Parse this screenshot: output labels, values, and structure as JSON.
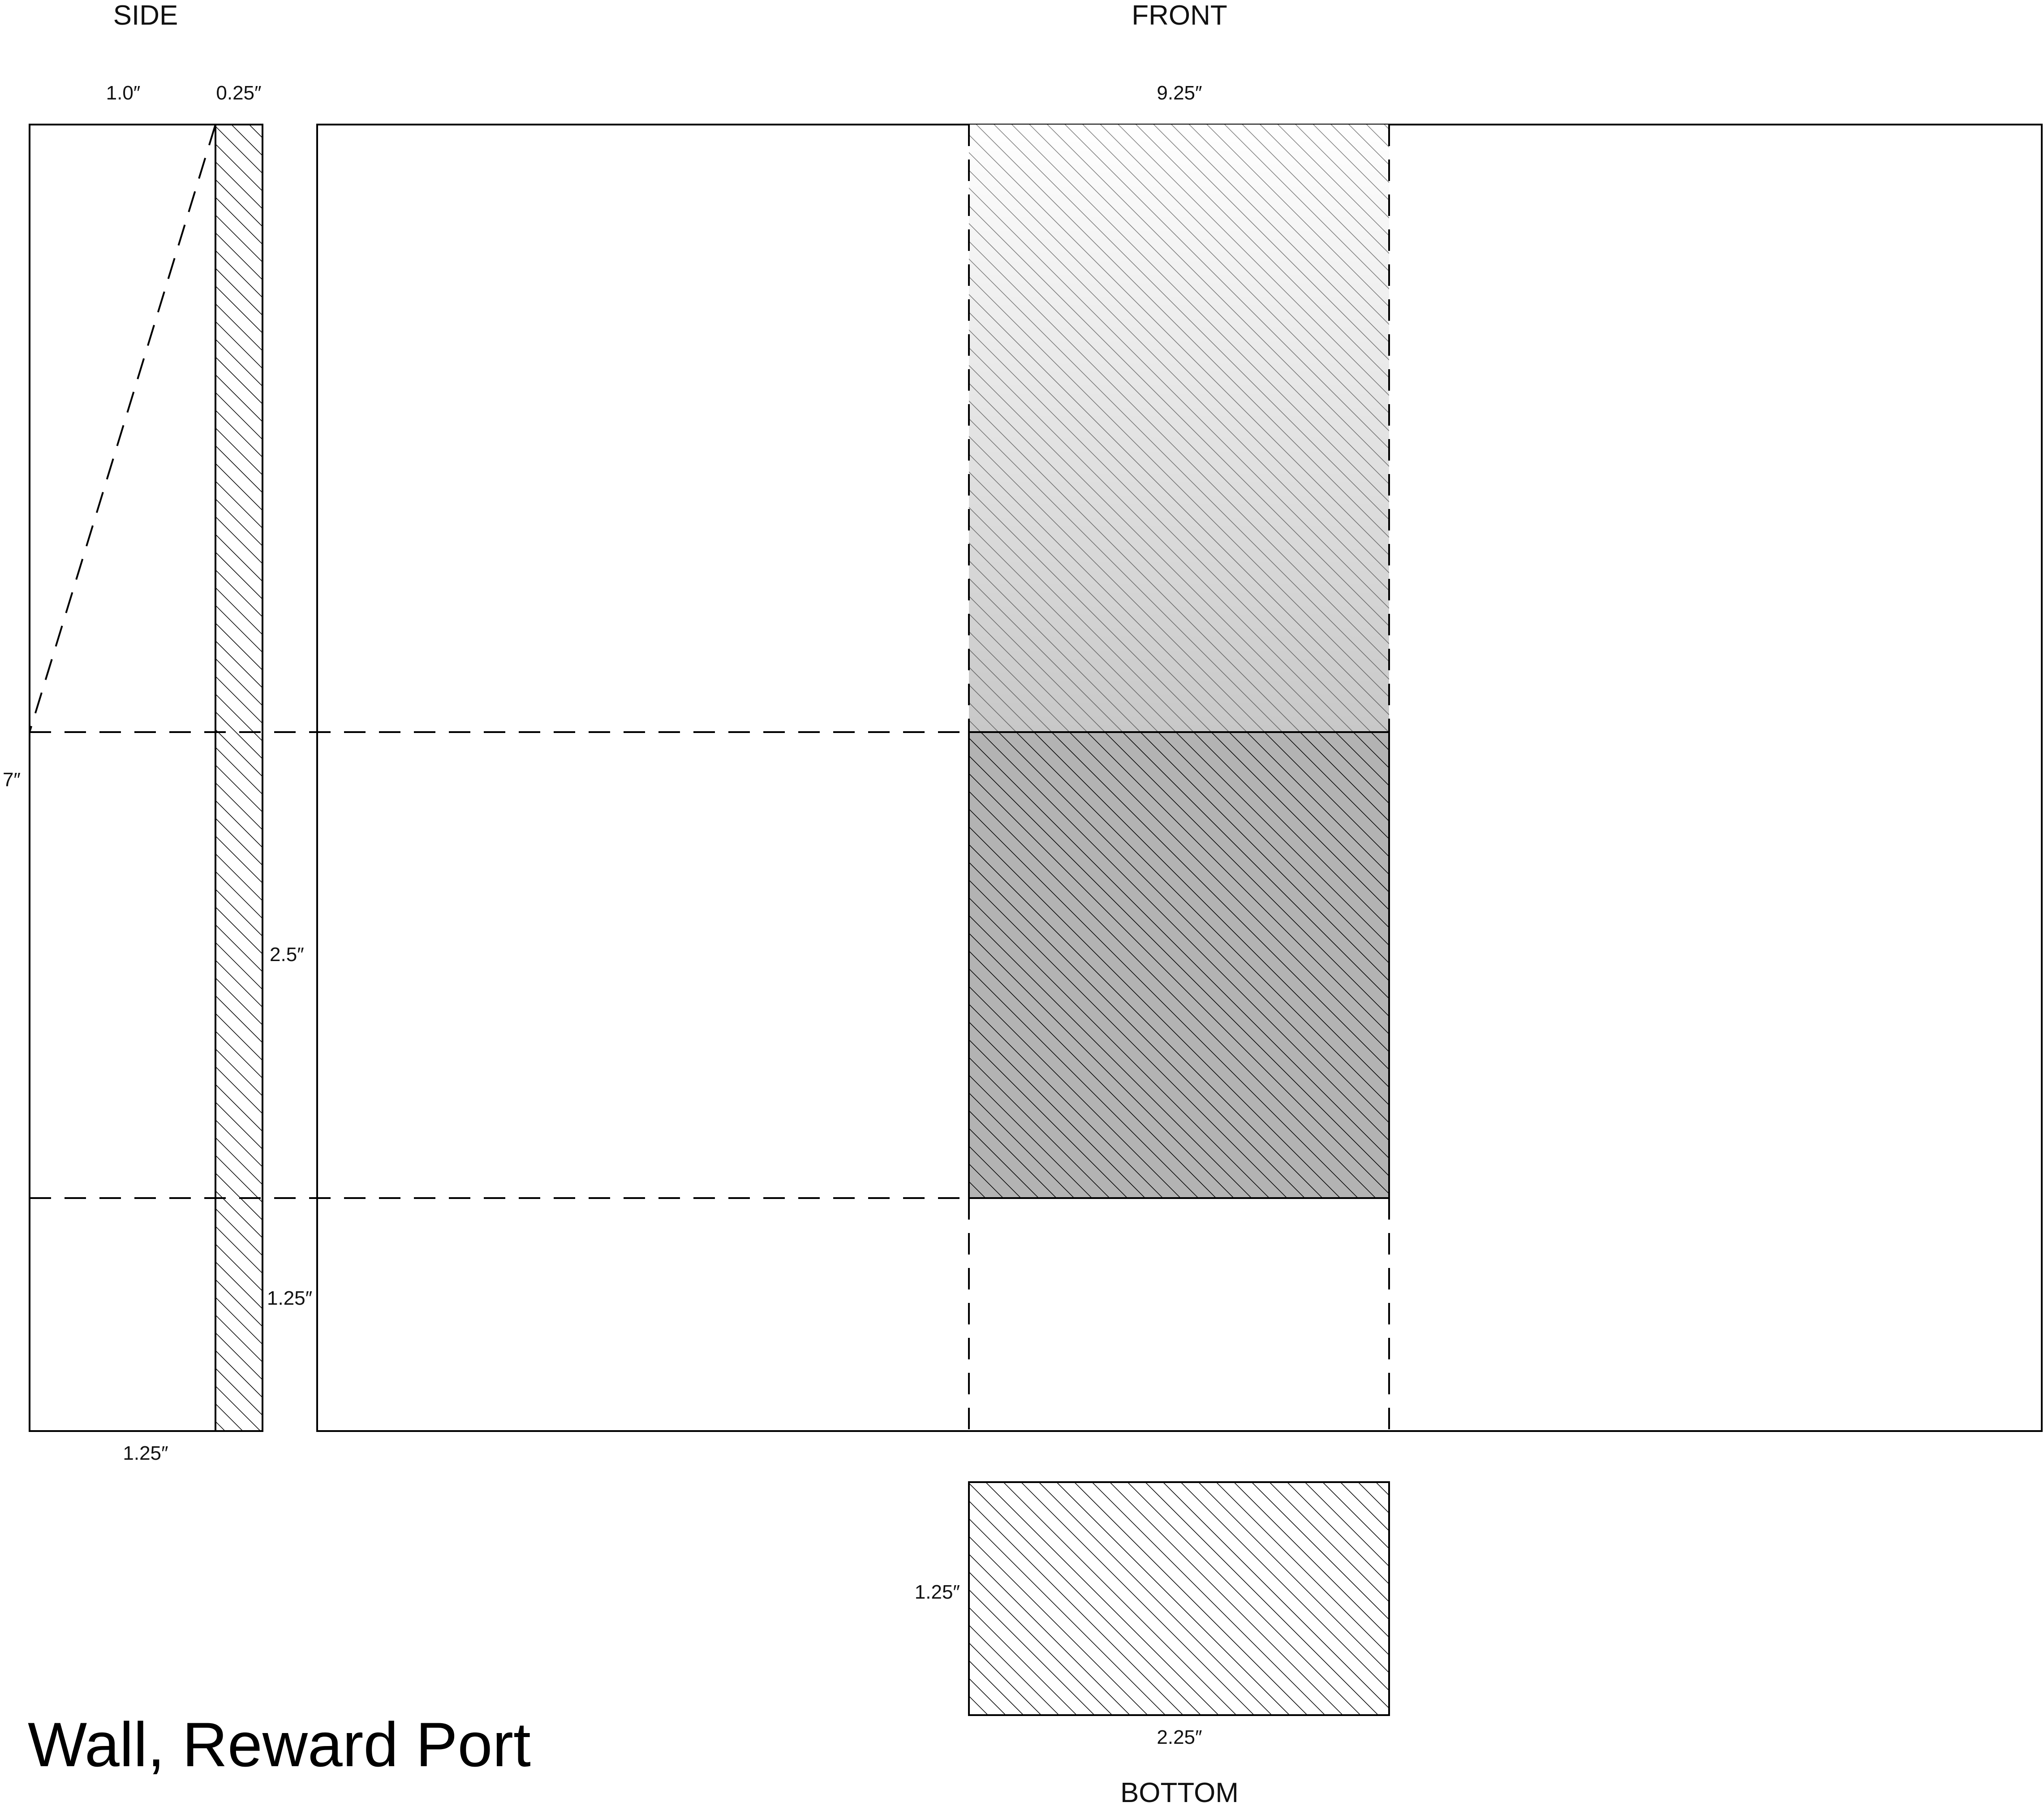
{
  "title": "Wall, Reward Port",
  "views": {
    "side": "SIDE",
    "front": "FRONT",
    "bottom": "BOTTOM"
  },
  "dimensions": {
    "side_top_width": "1.0″",
    "side_wall_thickness": "0.25″",
    "side_height": "7″",
    "side_port_height": "2.5″",
    "side_lower_height": "1.25″",
    "side_base_width": "1.25″",
    "front_width": "9.25″",
    "bottom_depth": "1.25″",
    "bottom_width": "2.25″"
  },
  "colors": {
    "line": "#000000",
    "port_fill": "#b3b3b3",
    "fade_top": "#ffffff",
    "fade_bottom": "#c8c8c8"
  }
}
